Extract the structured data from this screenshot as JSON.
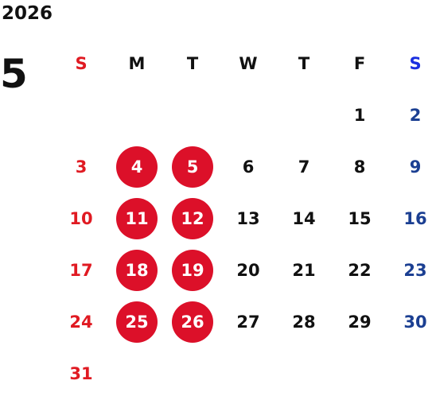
{
  "year": "2026",
  "month": "5",
  "weekdays": [
    "S",
    "M",
    "T",
    "W",
    "T",
    "F",
    "S"
  ],
  "days": [
    "",
    "",
    "",
    "",
    "",
    "1",
    "2",
    "3",
    "4",
    "5",
    "6",
    "7",
    "8",
    "9",
    "10",
    "11",
    "12",
    "13",
    "14",
    "15",
    "16",
    "17",
    "18",
    "19",
    "20",
    "21",
    "22",
    "23",
    "24",
    "25",
    "26",
    "27",
    "28",
    "29",
    "30",
    "31",
    "",
    "",
    "",
    "",
    "",
    ""
  ],
  "highlighted_days": [
    "4",
    "5",
    "11",
    "12",
    "18",
    "19",
    "25",
    "26"
  ],
  "colors": {
    "sunday": "#e01a22",
    "saturday": "#1b3f92",
    "highlight": "#dc1029"
  }
}
